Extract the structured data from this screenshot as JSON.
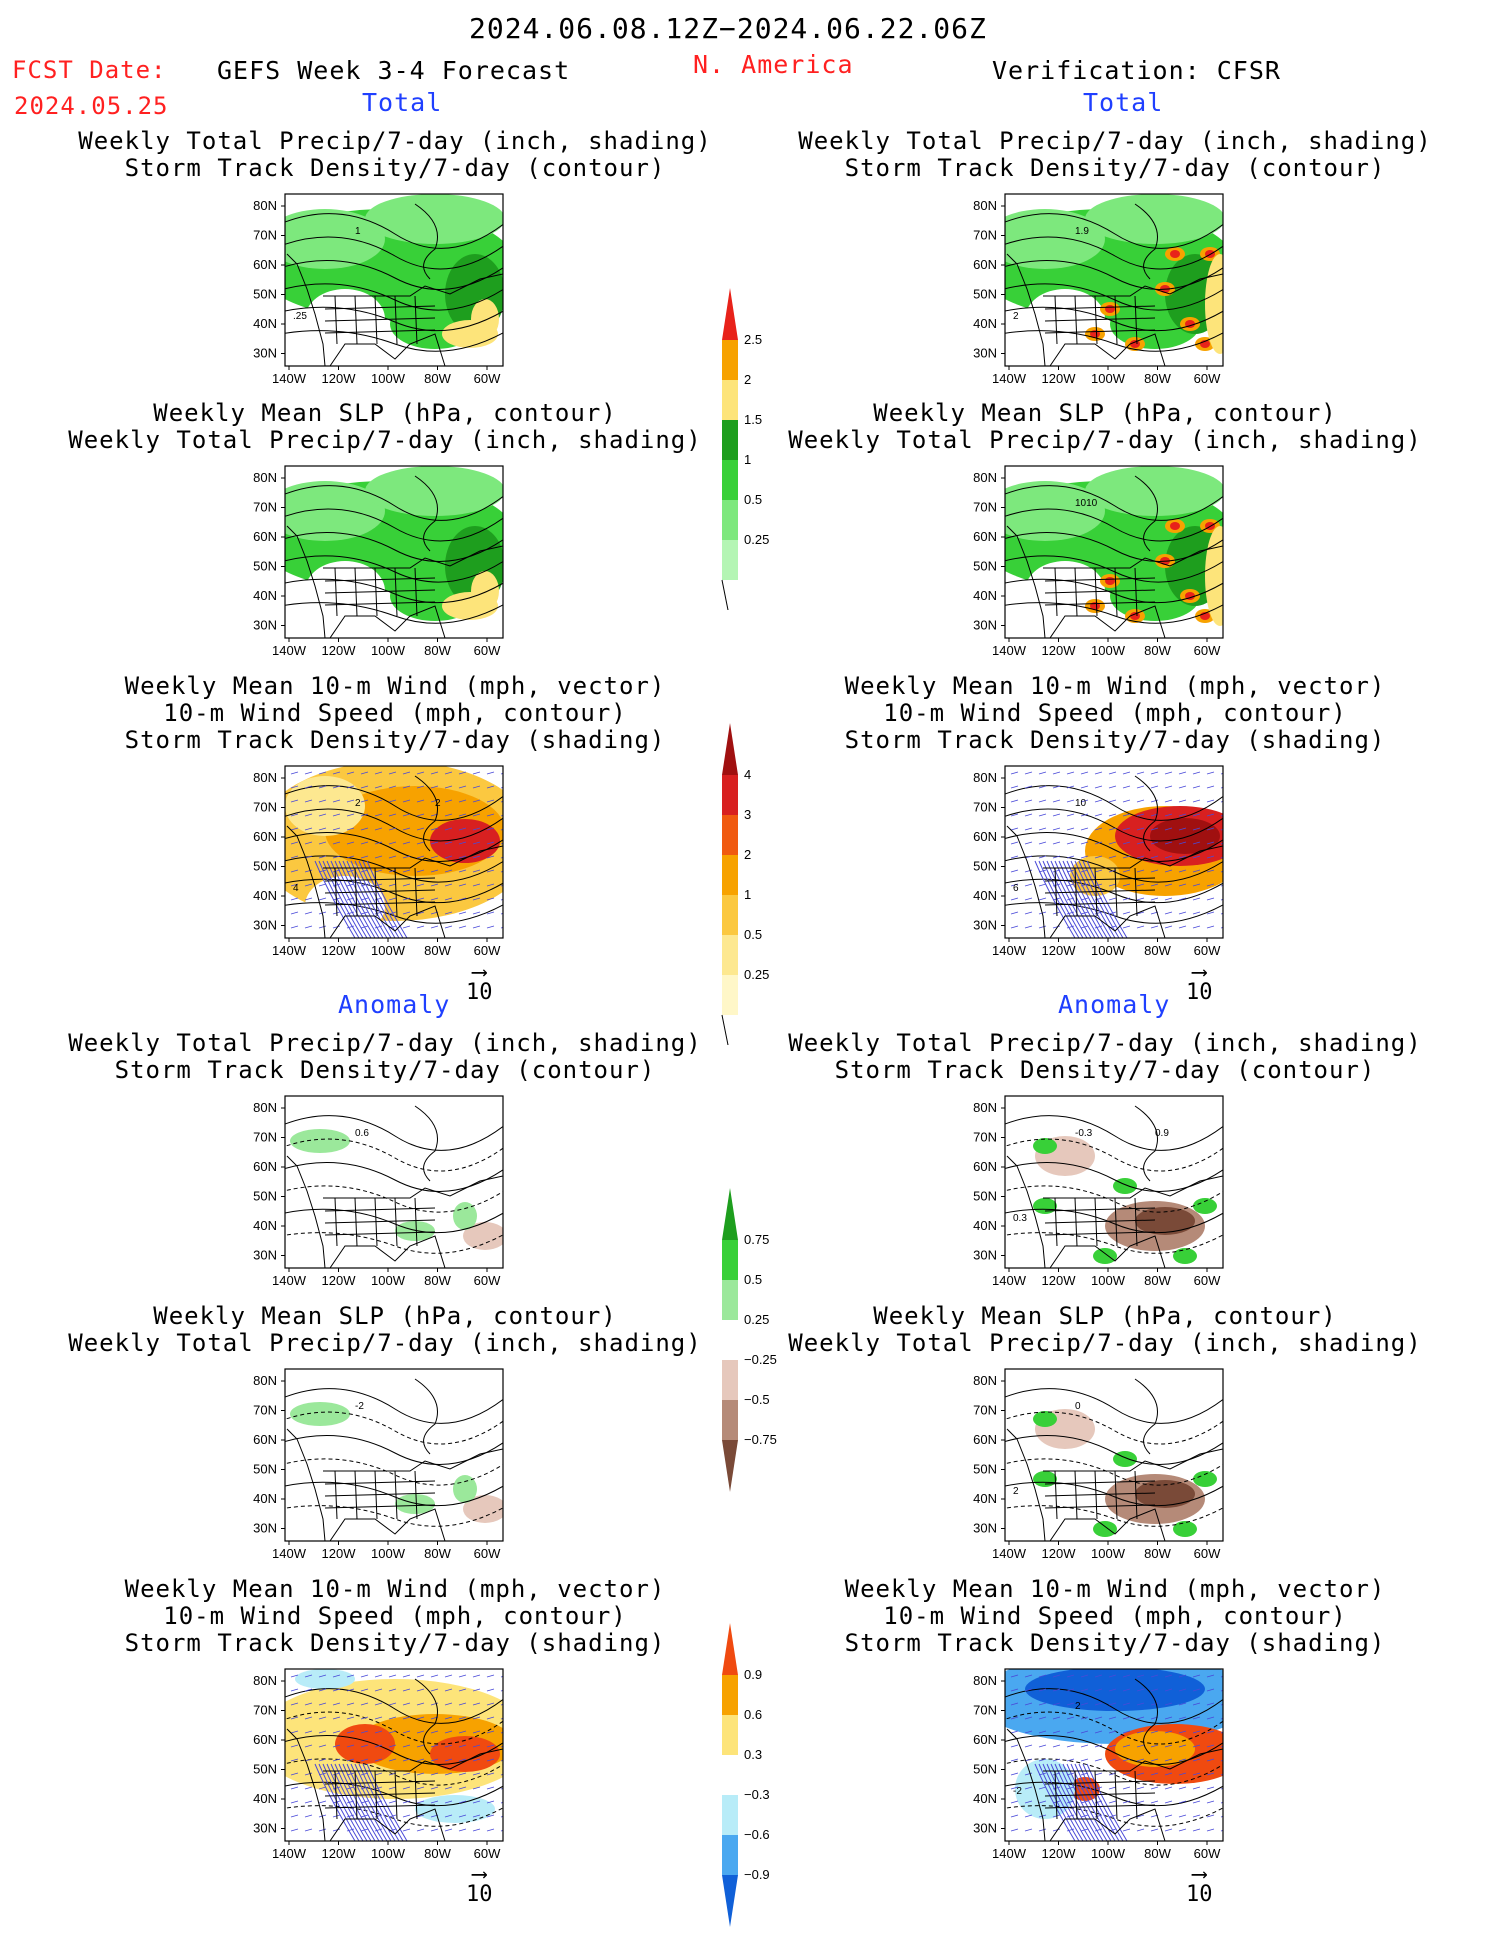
{
  "header": {
    "date_range": "2024.06.08.12Z−2024.06.22.06Z",
    "fcst_date_label": "FCST Date:",
    "fcst_date_value": "2024.05.25",
    "forecast_title": "GEFS Week 3-4 Forecast",
    "region": "N. America",
    "verification": "Verification: CFSR"
  },
  "sections": {
    "total_left": "Total",
    "total_right": "Total",
    "anomaly_left": "Anomaly",
    "anomaly_right": "Anomaly"
  },
  "panel_titles": {
    "precip_storm": [
      "Weekly Total Precip/7-day (inch, shading)",
      "Storm Track Density/7-day (contour)"
    ],
    "slp_precip": [
      "Weekly Mean SLP (hPa, contour)",
      "Weekly Total Precip/7-day (inch, shading)"
    ],
    "wind_storm": [
      "Weekly Mean 10-m Wind (mph, vector)",
      "10-m Wind Speed (mph, contour)",
      "Storm Track Density/7-day (shading)"
    ]
  },
  "map_axes": {
    "lat_labels": [
      "80N",
      "70N",
      "60N",
      "50N",
      "40N",
      "30N"
    ],
    "lon_labels": [
      "140W",
      "120W",
      "100W",
      "80W",
      "60W"
    ]
  },
  "vector_scale": "10",
  "colorbars": {
    "precip_total": {
      "labels": [
        "2.5",
        "2",
        "1.5",
        "1",
        "0.5",
        "0.25"
      ],
      "colors": [
        "#e8221a",
        "#f7a200",
        "#fde47a",
        "#1e9e1e",
        "#38d038",
        "#7de87d",
        "#b4f5b4"
      ]
    },
    "storm_total": {
      "labels": [
        "4",
        "3",
        "2",
        "1",
        "0.5",
        "0.25"
      ],
      "colors": [
        "#a01010",
        "#d82020",
        "#f05a10",
        "#f7a200",
        "#fbc840",
        "#fde890",
        "#fff7c8"
      ]
    },
    "precip_anom": {
      "labels": [
        "0.75",
        "0.5",
        "0.25",
        "−0.25",
        "−0.5",
        "−0.75"
      ],
      "colors": [
        "#1e9e1e",
        "#38d038",
        "#9be89b",
        "#ffffff",
        "#e6c8bc",
        "#b58a78",
        "#7a4a38"
      ]
    },
    "storm_anom": {
      "labels": [
        "0.9",
        "0.6",
        "0.3",
        "−0.3",
        "−0.6",
        "−0.9"
      ],
      "colors": [
        "#f04a10",
        "#f7a200",
        "#fde47a",
        "#ffffff",
        "#b8ecf8",
        "#4aa8f0",
        "#1060d8"
      ]
    }
  },
  "contour_labels": {
    "p1l_a": "1",
    "p1l_b": ".25",
    "p1r_a": "1.9",
    "p1r_b": "2",
    "p2r_a": "1010",
    "p3l_a": "2",
    "p3l_b": "4",
    "p3l_c": "2",
    "p3r_a": "10",
    "p3r_b": "6",
    "p4l_a": "0.6",
    "p4r_a": "-0.3",
    "p4r_b": "0.3",
    "p4r_c": "0.9",
    "p5l_a": "-2",
    "p5r_a": "0",
    "p5r_b": "2",
    "p6r_a": "2",
    "p6r_b": "-2"
  },
  "colors": {
    "red_text": "#ff2020",
    "blue_text": "#1f3fff"
  }
}
